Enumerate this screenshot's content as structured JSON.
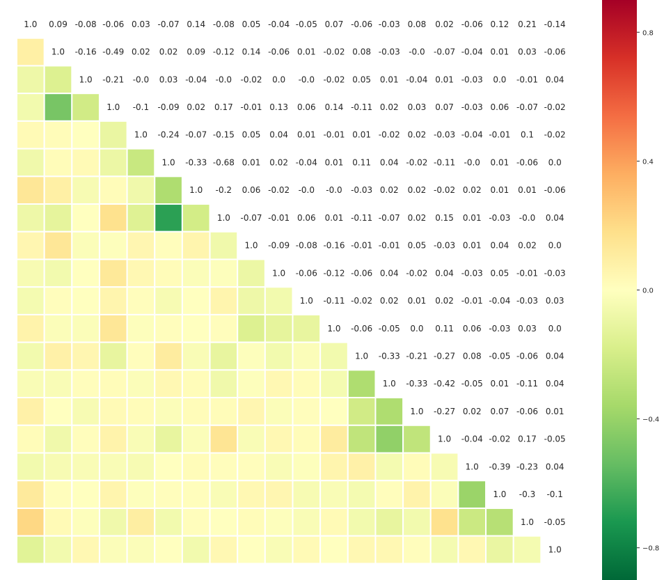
{
  "chart_data": {
    "type": "heatmap",
    "title": "",
    "xlabel": "",
    "ylabel": "",
    "n": 20,
    "upper_triangle": [
      [
        "1.0",
        "0.09",
        "-0.08",
        "-0.06",
        "0.03",
        "-0.07",
        "0.14",
        "-0.08",
        "0.05",
        "-0.04",
        "-0.05",
        "0.07",
        "-0.06",
        "-0.03",
        "0.08",
        "0.02",
        "-0.06",
        "0.12",
        "0.21",
        "-0.14"
      ],
      [
        "1.0",
        "-0.16",
        "-0.49",
        "0.02",
        "0.02",
        "0.09",
        "-0.12",
        "0.14",
        "-0.06",
        "0.01",
        "-0.02",
        "0.08",
        "-0.03",
        "-0.0",
        "-0.07",
        "-0.04",
        "0.01",
        "0.03",
        "-0.06"
      ],
      [
        "1.0",
        "-0.21",
        "-0.0",
        "0.03",
        "-0.04",
        "-0.0",
        "-0.02",
        "0.0",
        "-0.0",
        "-0.02",
        "0.05",
        "0.01",
        "-0.04",
        "0.01",
        "-0.03",
        "0.0",
        "-0.01",
        "0.04"
      ],
      [
        "1.0",
        "-0.1",
        "-0.09",
        "0.02",
        "0.17",
        "-0.01",
        "0.13",
        "0.06",
        "0.14",
        "-0.11",
        "0.02",
        "0.03",
        "0.07",
        "-0.03",
        "0.06",
        "-0.07",
        "-0.02"
      ],
      [
        "1.0",
        "-0.24",
        "-0.07",
        "-0.15",
        "0.05",
        "0.04",
        "0.01",
        "-0.01",
        "0.01",
        "-0.02",
        "0.02",
        "-0.03",
        "-0.04",
        "-0.01",
        "0.1",
        "-0.02"
      ],
      [
        "1.0",
        "-0.33",
        "-0.68",
        "0.01",
        "0.02",
        "-0.04",
        "0.01",
        "0.11",
        "0.04",
        "-0.02",
        "-0.11",
        "-0.0",
        "0.01",
        "-0.06",
        "0.0"
      ],
      [
        "1.0",
        "-0.2",
        "0.06",
        "-0.02",
        "-0.0",
        "-0.0",
        "-0.03",
        "0.02",
        "0.02",
        "-0.02",
        "0.02",
        "0.01",
        "0.01",
        "-0.06"
      ],
      [
        "1.0",
        "-0.07",
        "-0.01",
        "0.06",
        "0.01",
        "-0.11",
        "-0.07",
        "0.02",
        "0.15",
        "0.01",
        "-0.03",
        "-0.0",
        "0.04"
      ],
      [
        "1.0",
        "-0.09",
        "-0.08",
        "-0.16",
        "-0.01",
        "-0.01",
        "0.05",
        "-0.03",
        "0.01",
        "0.04",
        "0.02",
        "0.0"
      ],
      [
        "1.0",
        "-0.06",
        "-0.12",
        "-0.06",
        "0.04",
        "-0.02",
        "0.04",
        "-0.03",
        "0.05",
        "-0.01",
        "-0.03"
      ],
      [
        "1.0",
        "-0.11",
        "-0.02",
        "0.02",
        "0.01",
        "0.02",
        "-0.01",
        "-0.04",
        "-0.03",
        "0.03"
      ],
      [
        "1.0",
        "-0.06",
        "-0.05",
        "0.0",
        "0.11",
        "0.06",
        "-0.03",
        "0.03",
        "0.0"
      ],
      [
        "1.0",
        "-0.33",
        "-0.21",
        "-0.27",
        "0.08",
        "-0.05",
        "-0.06",
        "0.04"
      ],
      [
        "1.0",
        "-0.33",
        "-0.42",
        "-0.05",
        "0.01",
        "-0.11",
        "0.04"
      ],
      [
        "1.0",
        "-0.27",
        "0.02",
        "0.07",
        "-0.06",
        "0.01"
      ],
      [
        "1.0",
        "-0.04",
        "-0.02",
        "0.17",
        "-0.05"
      ],
      [
        "1.0",
        "-0.39",
        "-0.23",
        "0.04"
      ],
      [
        "1.0",
        "-0.3",
        "-0.1"
      ],
      [
        "1.0",
        "-0.05"
      ],
      [
        "1.0"
      ]
    ],
    "colorbar": {
      "colormap": "RdYlGn_r",
      "vmin": -0.9,
      "vmax": 0.9,
      "ticks": [
        "0.8",
        "0.4",
        "0.0",
        "−0.4",
        "−0.8"
      ],
      "tick_values": [
        0.8,
        0.4,
        0.0,
        -0.4,
        -0.8
      ],
      "colors": [
        "#006837",
        "#1a9850",
        "#66bd63",
        "#a6d96a",
        "#d9ef8b",
        "#ffffbf",
        "#fee08b",
        "#fdae61",
        "#f46d43",
        "#d73027",
        "#a50026"
      ]
    },
    "grid": true,
    "legend": "right"
  }
}
